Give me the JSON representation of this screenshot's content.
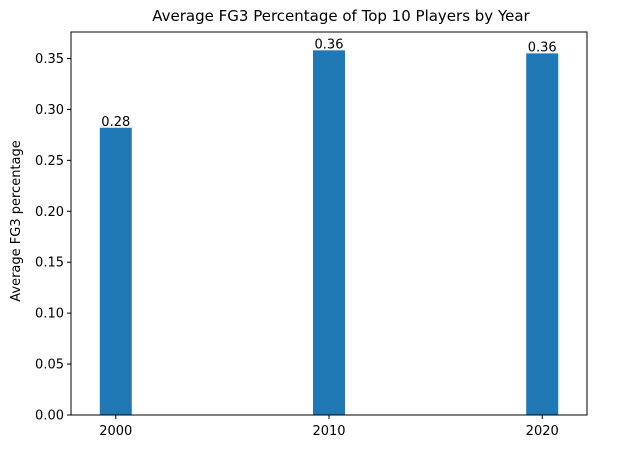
{
  "chart_data": {
    "type": "bar",
    "title": "Average FG3 Percentage of Top 10 Players by Year",
    "xlabel": "",
    "ylabel": "Average FG3 percentage",
    "categories": [
      "2000",
      "2010",
      "2020"
    ],
    "x": [
      2000,
      2010,
      2020
    ],
    "values": [
      0.282,
      0.358,
      0.355
    ],
    "data_labels": [
      "0.28",
      "0.36",
      "0.36"
    ],
    "xlim": [
      1997.9,
      2022.1
    ],
    "ylim": [
      0,
      0.376
    ],
    "yticks": [
      0.0,
      0.05,
      0.1,
      0.15,
      0.2,
      0.25,
      0.3,
      0.35
    ],
    "ytick_labels": [
      "0.00",
      "0.05",
      "0.10",
      "0.15",
      "0.20",
      "0.25",
      "0.30",
      "0.35"
    ],
    "bar_width": 1.5,
    "grid": false,
    "legend": "none",
    "colors": {
      "bar": "#1f77b4",
      "axis": "#000000"
    }
  }
}
